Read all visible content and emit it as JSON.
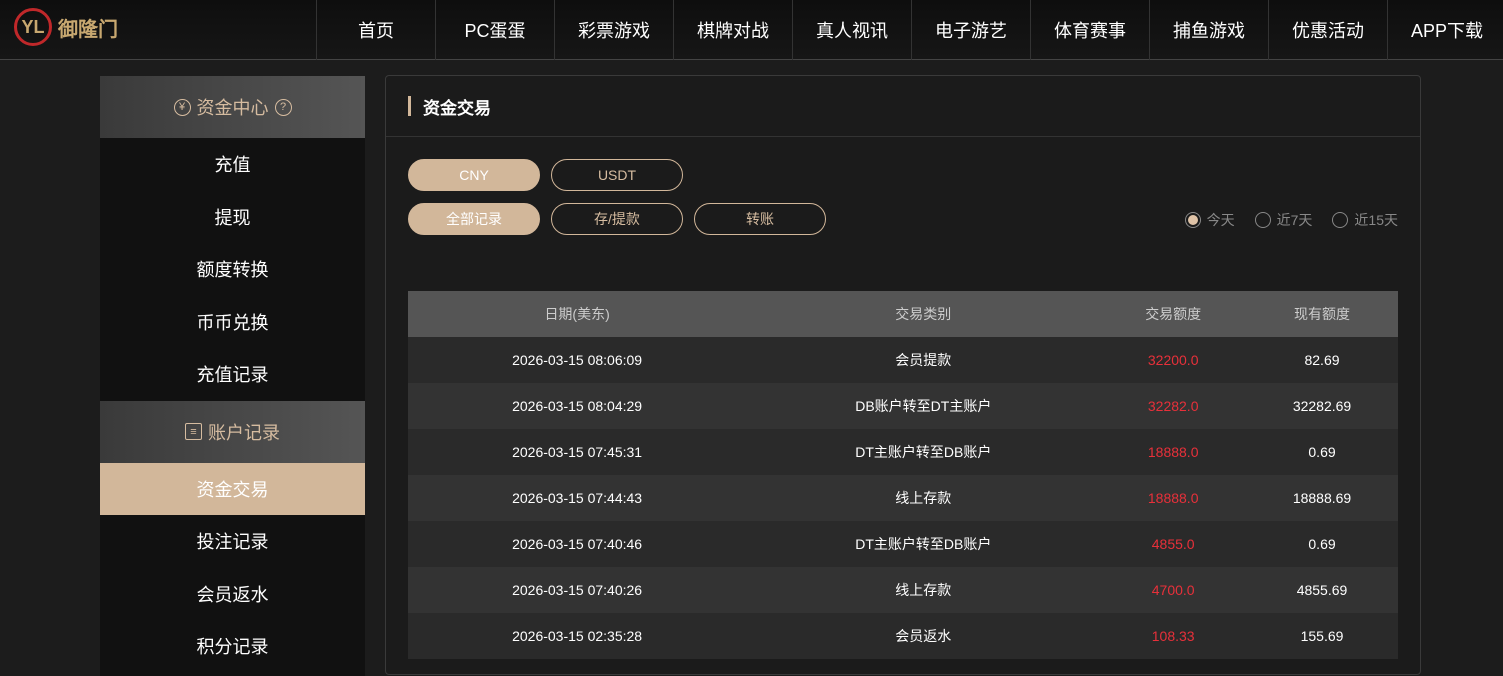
{
  "logo": {
    "text": "御隆门"
  },
  "nav": [
    "首页",
    "PC蛋蛋",
    "彩票游戏",
    "棋牌对战",
    "真人视讯",
    "电子游艺",
    "体育赛事",
    "捕鱼游戏",
    "优惠活动",
    "APP下载"
  ],
  "sidebar": {
    "section1": "资金中心",
    "items1": [
      "充值",
      "提现",
      "额度转换",
      "币币兑换",
      "充值记录"
    ],
    "section2": "账户记录",
    "items2": [
      "资金交易",
      "投注记录",
      "会员返水",
      "积分记录"
    ],
    "active": "资金交易"
  },
  "main": {
    "title": "资金交易",
    "currency": [
      "CNY",
      "USDT"
    ],
    "types": [
      "全部记录",
      "存/提款",
      "转账"
    ],
    "ranges": [
      "今天",
      "近7天",
      "近15天"
    ],
    "selected_range": "今天"
  },
  "table": {
    "headers": [
      "日期(美东)",
      "交易类别",
      "交易额度",
      "现有额度"
    ],
    "rows": [
      [
        "2026-03-15 08:06:09",
        "会员提款",
        "32200.0",
        "82.69"
      ],
      [
        "2026-03-15 08:04:29",
        "DB账户转至DT主账户",
        "32282.0",
        "32282.69"
      ],
      [
        "2026-03-15 07:45:31",
        "DT主账户转至DB账户",
        "18888.0",
        "0.69"
      ],
      [
        "2026-03-15 07:44:43",
        "线上存款",
        "18888.0",
        "18888.69"
      ],
      [
        "2026-03-15 07:40:46",
        "DT主账户转至DB账户",
        "4855.0",
        "0.69"
      ],
      [
        "2026-03-15 07:40:26",
        "线上存款",
        "4700.0",
        "4855.69"
      ],
      [
        "2026-03-15 02:35:28",
        "会员返水",
        "108.33",
        "155.69"
      ]
    ]
  },
  "colors": {
    "accent": "#d2b79a",
    "amount": "#e8303a"
  }
}
